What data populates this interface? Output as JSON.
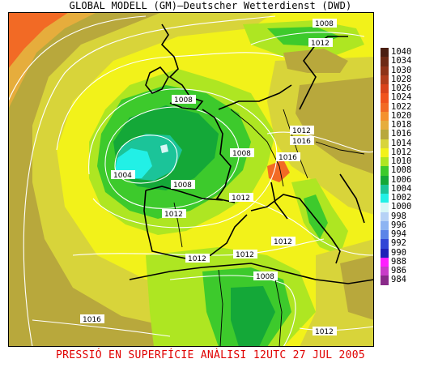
{
  "title": "GLOBAL MODELL (GM)—Deutscher Wetterdienst (DWD)",
  "footer": "PRESSIÓ EN SUPERFÍCIE   ANÀLISI 12UTC 27 JUL 2005",
  "legend": [
    {
      "label": "1040",
      "color": "#4a1f12"
    },
    {
      "label": "1034",
      "color": "#6d2a15"
    },
    {
      "label": "1030",
      "color": "#8e3318"
    },
    {
      "label": "1028",
      "color": "#b23d1c"
    },
    {
      "label": "1026",
      "color": "#d9431c"
    },
    {
      "label": "1024",
      "color": "#f0531e"
    },
    {
      "label": "1022",
      "color": "#f26a25"
    },
    {
      "label": "1020",
      "color": "#f4912e"
    },
    {
      "label": "1018",
      "color": "#e6ad3c"
    },
    {
      "label": "1016",
      "color": "#b8a83c"
    },
    {
      "label": "1014",
      "color": "#d8d43a"
    },
    {
      "label": "1012",
      "color": "#f2f21a"
    },
    {
      "label": "1010",
      "color": "#aee622"
    },
    {
      "label": "1008",
      "color": "#3dca2c"
    },
    {
      "label": "1006",
      "color": "#14a838"
    },
    {
      "label": "1004",
      "color": "#1bc499"
    },
    {
      "label": "1002",
      "color": "#22f0e6"
    },
    {
      "label": "1000",
      "color": "#d8f6f6"
    },
    {
      "label": "998",
      "color": "#b6d2f6"
    },
    {
      "label": "996",
      "color": "#8db4f2"
    },
    {
      "label": "994",
      "color": "#5b84e8"
    },
    {
      "label": "992",
      "color": "#3246d6"
    },
    {
      "label": "990",
      "color": "#1f22b8"
    },
    {
      "label": "988",
      "color": "#ff1eff"
    },
    {
      "label": "986",
      "color": "#c83cc8"
    },
    {
      "label": "984",
      "color": "#8a2a8a"
    }
  ],
  "map": {
    "isobar_labels": [
      "1008",
      "1012",
      "1008",
      "1008",
      "1004",
      "1008",
      "1012",
      "1016",
      "1016",
      "1008",
      "1012",
      "1012",
      "1012",
      "1012",
      "1012",
      "1008",
      "1016",
      "1012"
    ]
  }
}
